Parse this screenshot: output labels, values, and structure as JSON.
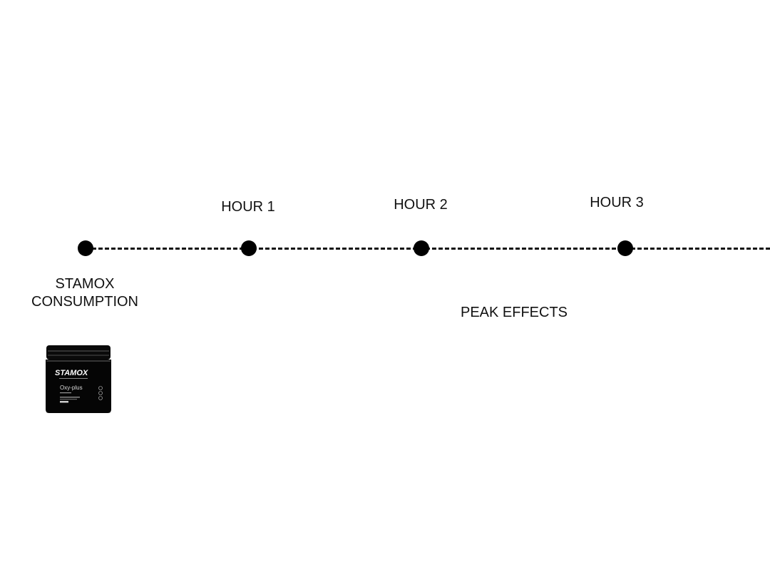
{
  "timeline": {
    "milestones": [
      {
        "top_label": "",
        "bottom_label": [
          "STAMOX",
          "CONSUMPTION"
        ]
      },
      {
        "top_label": "HOUR 1"
      },
      {
        "top_label": "HOUR 2"
      },
      {
        "top_label": "HOUR 3"
      }
    ],
    "annotation": "PEAK EFFECTS",
    "line_color": "#111111"
  },
  "product": {
    "brand": "STAMOX",
    "name": "Oxy-plus"
  }
}
